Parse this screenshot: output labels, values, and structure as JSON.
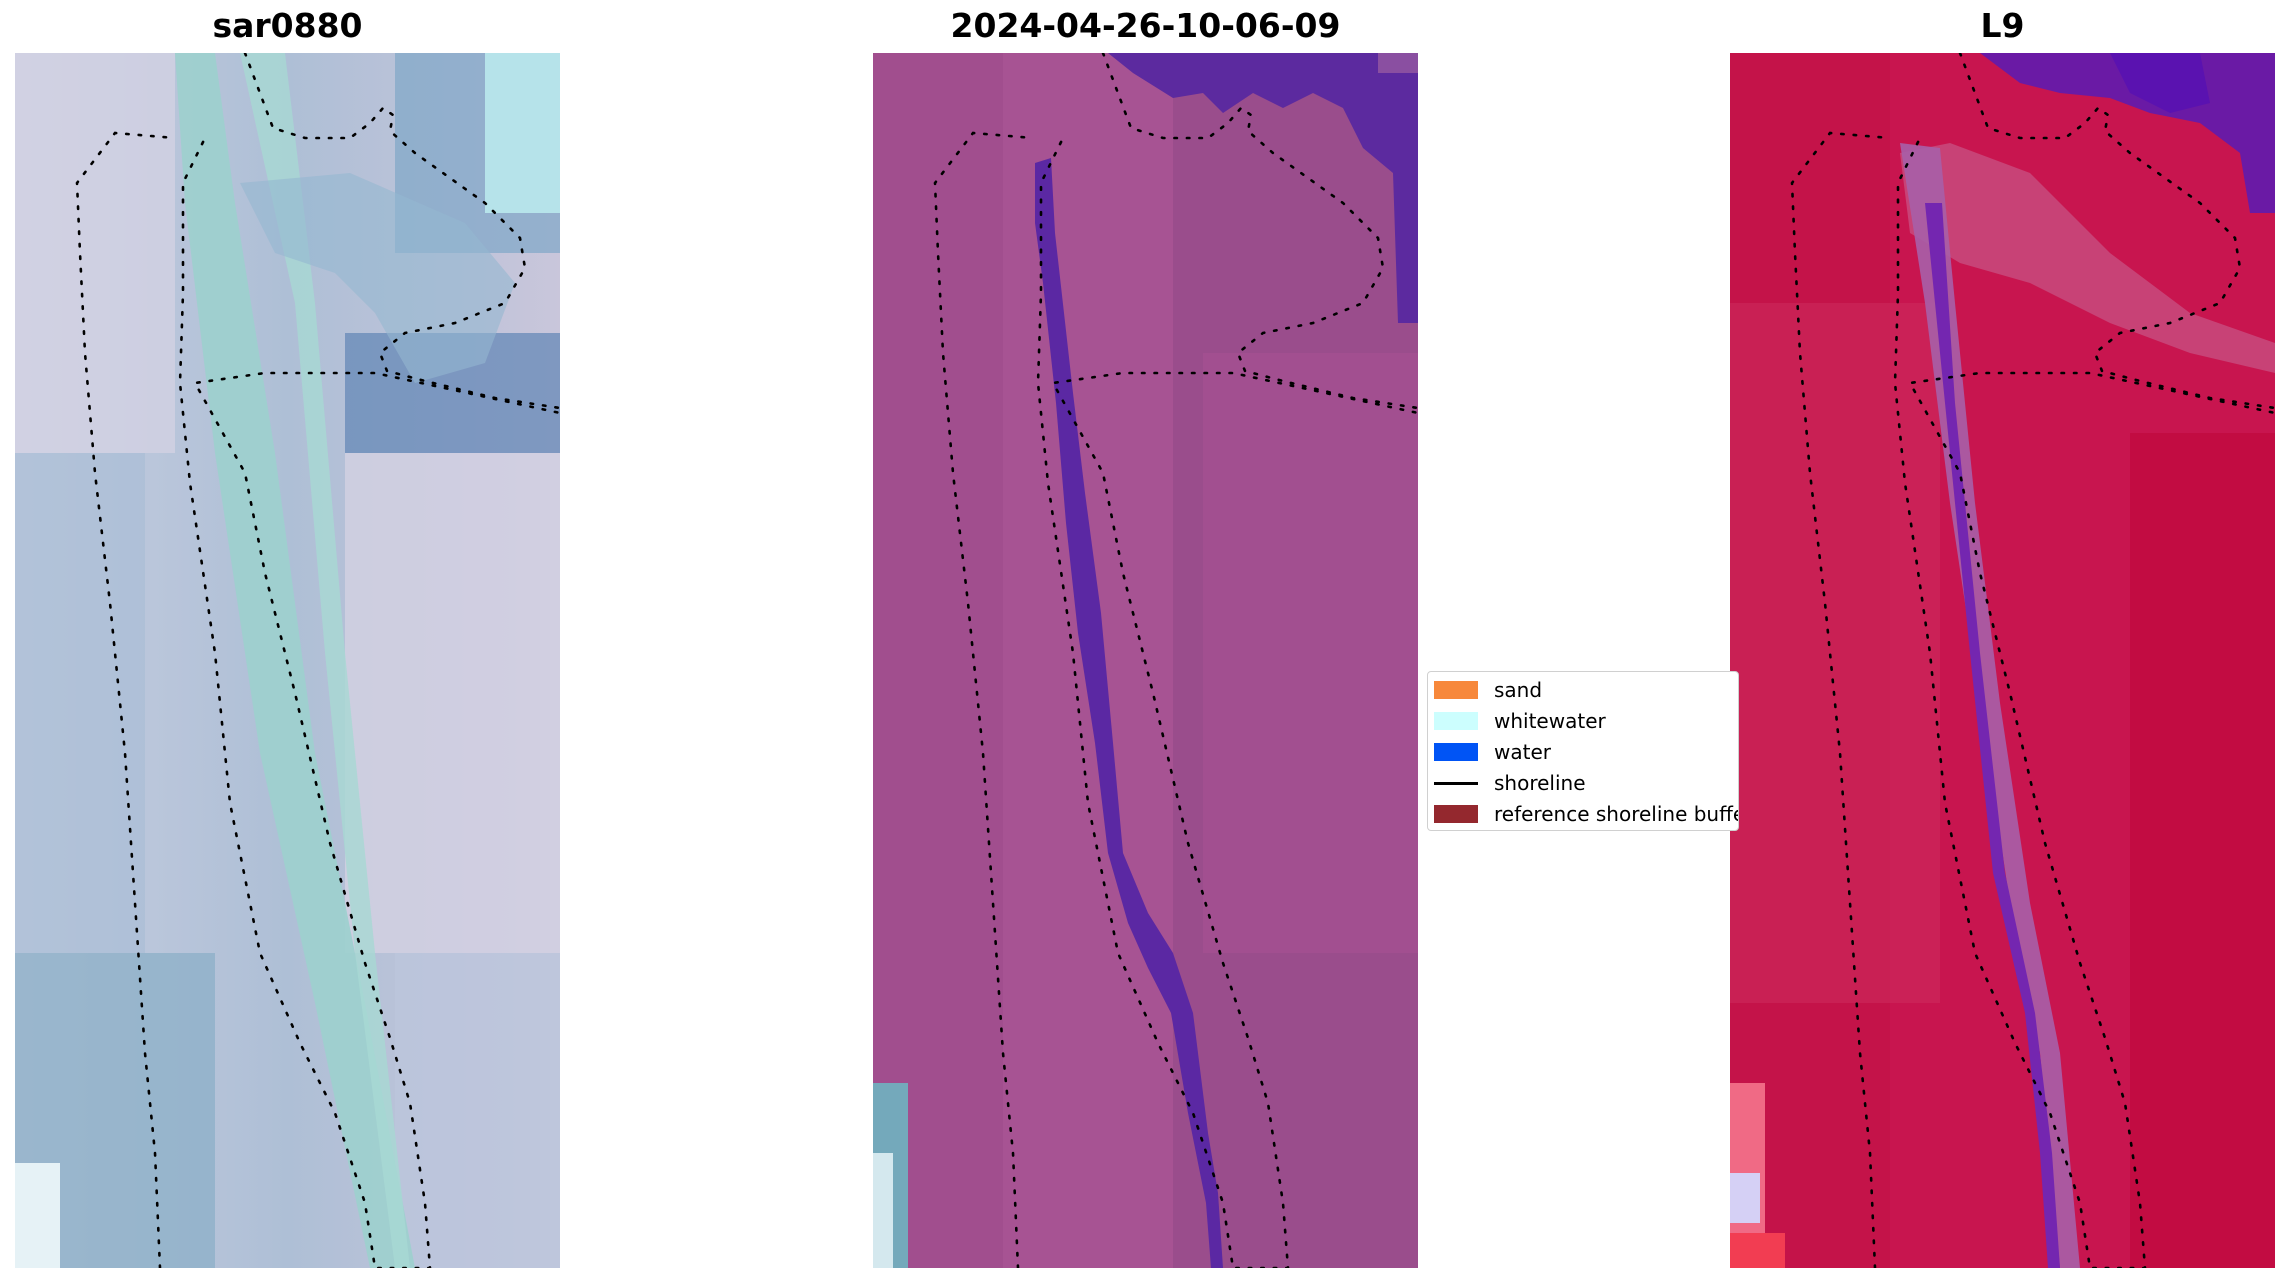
{
  "panels": [
    {
      "title": "sar0880"
    },
    {
      "title": "2024-04-26-10-06-09"
    },
    {
      "title": "L9"
    }
  ],
  "legend": {
    "items": [
      {
        "label": "sand",
        "color": "#f7883b",
        "kind": "patch"
      },
      {
        "label": "whitewater",
        "color": "#ccfefe",
        "kind": "patch"
      },
      {
        "label": "water",
        "color": "#0054f5",
        "kind": "patch"
      },
      {
        "label": "shoreline",
        "color": "#000000",
        "kind": "line"
      },
      {
        "label": "reference shoreline buffer",
        "color": "#94282e",
        "kind": "patch"
      }
    ]
  }
}
